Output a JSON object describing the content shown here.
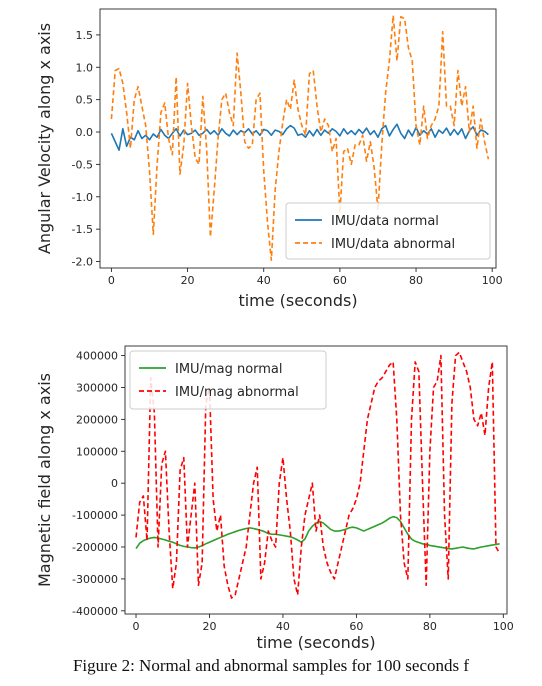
{
  "caption": "Figure 2: Normal and abnormal samples for 100 seconds f",
  "chart_data": [
    {
      "type": "line",
      "xlabel": "time (seconds)",
      "ylabel": "Angular Velocity along x axis",
      "xlim": [
        -3,
        101
      ],
      "ylim": [
        -2.1,
        1.9
      ],
      "xticks": [
        0,
        20,
        40,
        60,
        80,
        100
      ],
      "yticks": [
        -2.0,
        -1.5,
        -1.0,
        -0.5,
        0.0,
        0.5,
        1.0,
        1.5
      ],
      "ytick_labels": [
        "-2.0",
        "-1.5",
        "-1.0",
        "-0.5",
        "0.0",
        "0.5",
        "1.0",
        "1.5"
      ],
      "grid": false,
      "legend": "lower right",
      "x": [
        0,
        1,
        2,
        3,
        4,
        5,
        6,
        7,
        8,
        9,
        10,
        11,
        12,
        13,
        14,
        15,
        16,
        17,
        18,
        19,
        20,
        21,
        22,
        23,
        24,
        25,
        26,
        27,
        28,
        29,
        30,
        31,
        32,
        33,
        34,
        35,
        36,
        37,
        38,
        39,
        40,
        41,
        42,
        43,
        44,
        45,
        46,
        47,
        48,
        49,
        50,
        51,
        52,
        53,
        54,
        55,
        56,
        57,
        58,
        59,
        60,
        61,
        62,
        63,
        64,
        65,
        66,
        67,
        68,
        69,
        70,
        71,
        72,
        73,
        74,
        75,
        76,
        77,
        78,
        79,
        80,
        81,
        82,
        83,
        84,
        85,
        86,
        87,
        88,
        89,
        90,
        91,
        92,
        93,
        94,
        95,
        96,
        97,
        98,
        99
      ],
      "series": [
        {
          "name": "IMU/data normal",
          "color": "#1f77b4",
          "style": "solid",
          "values": [
            -0.02,
            -0.15,
            -0.28,
            0.05,
            -0.22,
            -0.08,
            -0.12,
            0.02,
            -0.1,
            -0.05,
            -0.12,
            -0.03,
            -0.08,
            0.04,
            -0.05,
            -0.1,
            -0.02,
            0.05,
            -0.06,
            0.03,
            -0.04,
            -0.02,
            0.03,
            -0.05,
            -0.02,
            0.04,
            -0.03,
            0.02,
            -0.05,
            0.05,
            -0.02,
            -0.06,
            0.03,
            -0.04,
            0.02,
            -0.01,
            0.05,
            -0.03,
            0.02,
            -0.05,
            0.04,
            0.02,
            -0.05,
            0.03,
            0.01,
            -0.04,
            0.05,
            0.1,
            0.06,
            -0.05,
            -0.03,
            -0.08,
            0.02,
            -0.06,
            0.04,
            -0.05,
            0.03,
            -0.02,
            0.05,
            0.01,
            -0.06,
            0.05,
            -0.03,
            0.02,
            -0.04,
            0.04,
            -0.02,
            0.06,
            -0.04,
            0.02,
            -0.08,
            0.05,
            0.1,
            -0.06,
            0.04,
            0.12,
            -0.02,
            -0.1,
            0.03,
            -0.06,
            0.07,
            -0.05,
            0.02,
            -0.03,
            0.05,
            -0.08,
            0.03,
            -0.02,
            0.06,
            -0.05,
            0.04,
            -0.04,
            0.05,
            -0.1,
            0.02,
            0.08,
            -0.05,
            0.03,
            0.01,
            -0.04
          ]
        },
        {
          "name": "IMU/data abnormal",
          "color": "#ff7f0e",
          "style": "dashed",
          "values": [
            0.2,
            0.95,
            0.98,
            0.75,
            0.3,
            -0.25,
            0.5,
            0.7,
            0.4,
            0.1,
            -0.6,
            -1.58,
            -0.5,
            0.3,
            0.45,
            -0.1,
            -0.35,
            0.85,
            -0.65,
            -0.2,
            0.75,
            0.1,
            -0.4,
            -0.5,
            0.55,
            -0.25,
            -1.62,
            -0.9,
            -0.1,
            0.5,
            0.6,
            0.3,
            0.1,
            1.22,
            0.6,
            -0.15,
            -0.25,
            -0.2,
            0.5,
            0.6,
            -0.6,
            -1.4,
            -1.98,
            -0.9,
            -0.3,
            0.15,
            0.5,
            0.35,
            0.8,
            0.35,
            0.1,
            -0.05,
            0.9,
            0.95,
            0.4,
            0.0,
            0.2,
            0.1,
            -0.3,
            -0.1,
            -1.25,
            -0.3,
            -0.25,
            -0.5,
            -0.2,
            -0.2,
            -0.05,
            -0.45,
            -0.15,
            -0.55,
            -1.2,
            -0.2,
            0.6,
            1.1,
            1.8,
            1.1,
            1.78,
            1.75,
            1.3,
            1.1,
            0.1,
            -0.2,
            0.4,
            -0.1,
            0.1,
            0.2,
            0.4,
            1.55,
            0.4,
            0.4,
            0.1,
            0.95,
            0.4,
            0.7,
            0.0,
            0.4,
            -0.25,
            0.2,
            -0.15,
            -0.42
          ]
        }
      ]
    },
    {
      "type": "line",
      "xlabel": "time (seconds)",
      "ylabel": "Magnetic field along x axis",
      "xlim": [
        -3,
        101
      ],
      "ylim": [
        -410000,
        430000
      ],
      "xticks": [
        0,
        20,
        40,
        60,
        80,
        100
      ],
      "yticks": [
        -400000,
        -300000,
        -200000,
        -100000,
        0,
        100000,
        200000,
        300000,
        400000
      ],
      "ytick_labels": [
        "-400000",
        "-300000",
        "-200000",
        "-100000",
        "0",
        "100000",
        "200000",
        "300000",
        "400000"
      ],
      "grid": false,
      "legend": "upper left",
      "x": [
        0,
        1,
        2,
        3,
        4,
        5,
        6,
        7,
        8,
        9,
        10,
        11,
        12,
        13,
        14,
        15,
        16,
        17,
        18,
        19,
        20,
        21,
        22,
        23,
        24,
        25,
        26,
        27,
        28,
        29,
        30,
        31,
        32,
        33,
        34,
        35,
        36,
        37,
        38,
        39,
        40,
        41,
        42,
        43,
        44,
        45,
        46,
        47,
        48,
        49,
        50,
        51,
        52,
        53,
        54,
        55,
        56,
        57,
        58,
        59,
        60,
        61,
        62,
        63,
        64,
        65,
        66,
        67,
        68,
        69,
        70,
        71,
        72,
        73,
        74,
        75,
        76,
        77,
        78,
        79,
        80,
        81,
        82,
        83,
        84,
        85,
        86,
        87,
        88,
        89,
        90,
        91,
        92,
        93,
        94,
        95,
        96,
        97,
        98,
        99
      ],
      "series": [
        {
          "name": "IMU/mag normal",
          "color": "#2ca02c",
          "style": "solid",
          "values": [
            -205000,
            -188000,
            -180000,
            -175000,
            -172000,
            -170000,
            -172000,
            -175000,
            -178000,
            -182000,
            -185000,
            -190000,
            -195000,
            -198000,
            -200000,
            -202000,
            -203000,
            -200000,
            -196000,
            -190000,
            -185000,
            -180000,
            -175000,
            -170000,
            -165000,
            -160000,
            -156000,
            -152000,
            -148000,
            -145000,
            -142000,
            -140000,
            -142000,
            -145000,
            -148000,
            -152000,
            -158000,
            -160000,
            -160000,
            -162000,
            -164000,
            -166000,
            -168000,
            -172000,
            -178000,
            -185000,
            -175000,
            -150000,
            -135000,
            -125000,
            -120000,
            -125000,
            -135000,
            -145000,
            -150000,
            -150000,
            -148000,
            -145000,
            -140000,
            -138000,
            -140000,
            -145000,
            -150000,
            -145000,
            -140000,
            -135000,
            -130000,
            -125000,
            -118000,
            -110000,
            -105000,
            -108000,
            -120000,
            -140000,
            -160000,
            -175000,
            -182000,
            -186000,
            -190000,
            -192000,
            -195000,
            -197000,
            -199000,
            -201000,
            -203000,
            -205000,
            -206000,
            -204000,
            -202000,
            -200000,
            -203000,
            -205000,
            -206000,
            -203000,
            -200000,
            -198000,
            -196000,
            -194000,
            -192000,
            -190000
          ]
        },
        {
          "name": "IMU/mag abnormal",
          "color": "#ff0000",
          "style": "dashed",
          "values": [
            -170000,
            -60000,
            -40000,
            -180000,
            330000,
            220000,
            -200000,
            60000,
            100000,
            -150000,
            -330000,
            -250000,
            40000,
            80000,
            -200000,
            -100000,
            0,
            -320000,
            -250000,
            250000,
            300000,
            -50000,
            -150000,
            -100000,
            -260000,
            -320000,
            -360000,
            -350000,
            -300000,
            -250000,
            -200000,
            -100000,
            0,
            50000,
            -300000,
            -250000,
            -150000,
            -180000,
            -200000,
            0,
            80000,
            -50000,
            -150000,
            -300000,
            -350000,
            -200000,
            -100000,
            -50000,
            0,
            -150000,
            -100000,
            -200000,
            -250000,
            -280000,
            -300000,
            -250000,
            -200000,
            -150000,
            -100000,
            -80000,
            -50000,
            0,
            100000,
            200000,
            250000,
            300000,
            320000,
            330000,
            350000,
            370000,
            380000,
            200000,
            -100000,
            -250000,
            -300000,
            200000,
            380000,
            350000,
            0,
            -320000,
            100000,
            300000,
            320000,
            400000,
            -100000,
            -300000,
            250000,
            400000,
            410000,
            380000,
            350000,
            300000,
            200000,
            180000,
            220000,
            150000,
            300000,
            380000,
            -200000,
            -220000
          ]
        }
      ]
    }
  ]
}
